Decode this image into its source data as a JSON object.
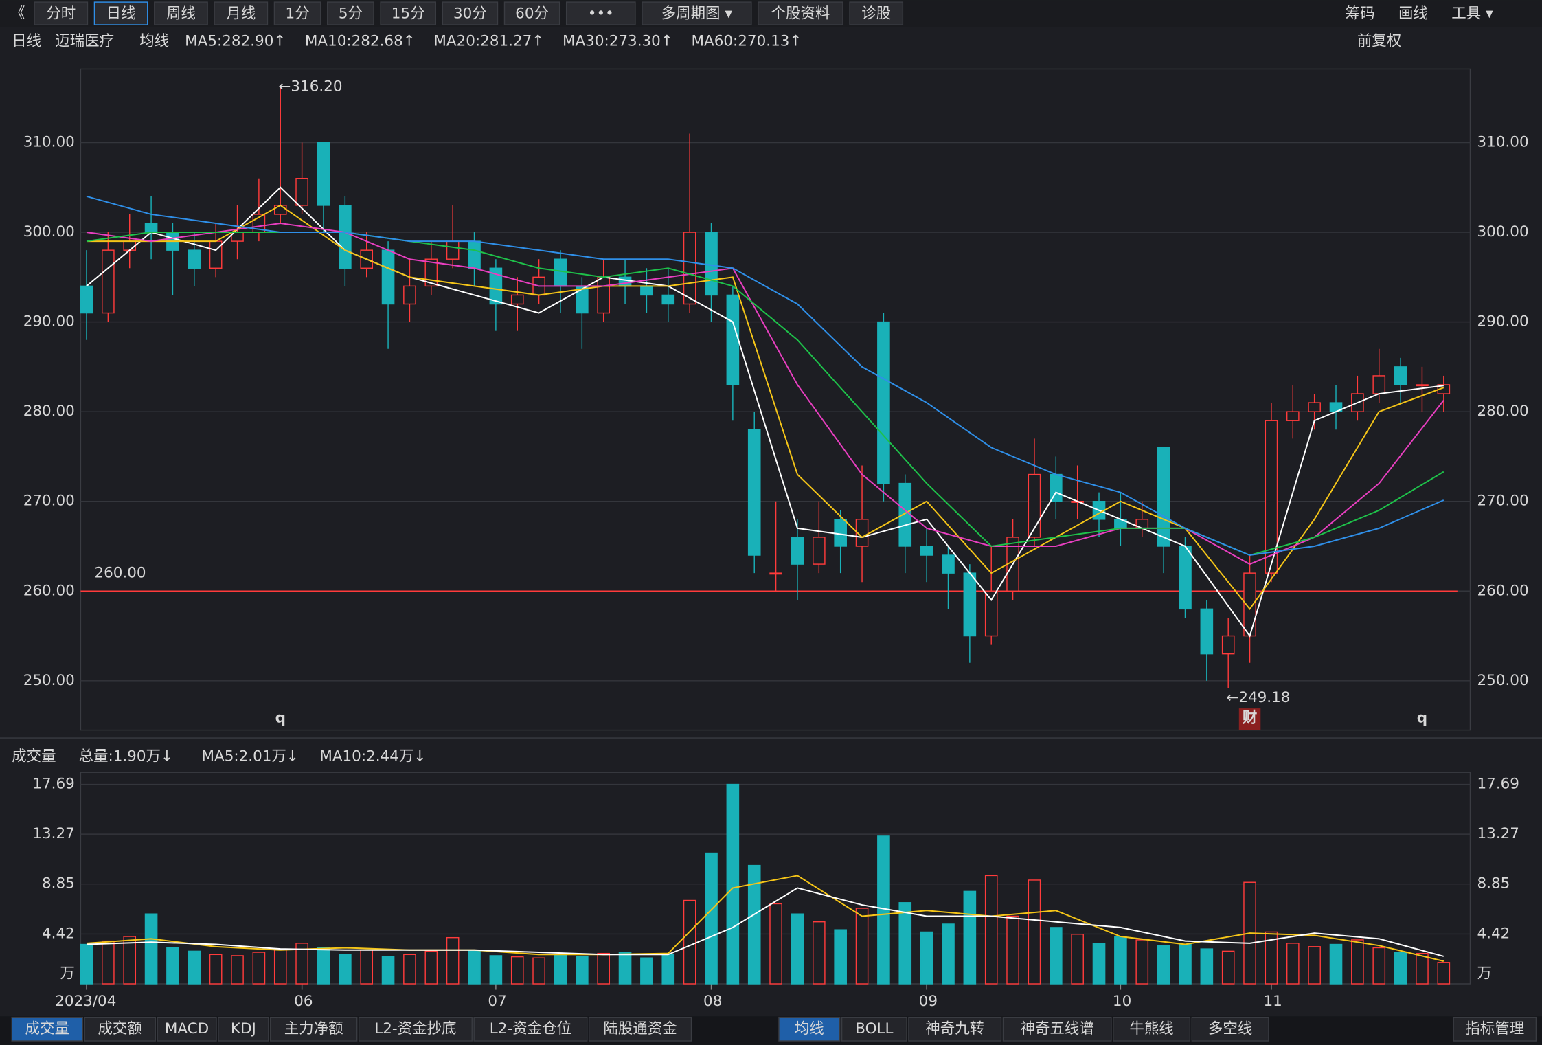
{
  "toolbar": {
    "left": [
      "《",
      "分时",
      "日线",
      "周线",
      "月线",
      "1分",
      "5分",
      "15分",
      "30分",
      "60分",
      "•••",
      "多周期图 ▾",
      "个股资料",
      "诊股"
    ],
    "active": "日线",
    "right": [
      "筹码",
      "画线",
      "工具 ▾"
    ]
  },
  "legend": {
    "period": "日线",
    "stock": "迈瑞医疗",
    "kind": "均线",
    "items": [
      "MA5:282.90↑",
      "MA10:282.68↑",
      "MA20:281.27↑",
      "MA30:273.30↑",
      "MA60:270.13↑"
    ],
    "adjust": "前复权"
  },
  "volume_legend": {
    "name": "成交量",
    "items": [
      "总量:1.90万↓",
      "MA5:2.01万↓",
      "MA10:2.44万↓"
    ]
  },
  "bottom_tabs": {
    "left": [
      "成交量",
      "成交额",
      "MACD",
      "KDJ",
      "主力净额",
      "L2-资金抄底",
      "L2-资金仓位",
      "陆股通资金"
    ],
    "right": [
      "均线",
      "BOLL",
      "神奇九转",
      "神奇五线谱",
      "牛熊线",
      "多空线"
    ],
    "manage": "指标管理"
  },
  "chart_data": {
    "type": "candlestick",
    "up_color": "#ff3b3b",
    "down_color": "#19b1b8",
    "ylim": [
      244.5,
      318.2
    ],
    "yticks": [
      {
        "value": 250,
        "label": "250.00"
      },
      {
        "value": 260,
        "label": "260.00"
      },
      {
        "value": 270,
        "label": "270.00"
      },
      {
        "value": 280,
        "label": "280.00"
      },
      {
        "value": 290,
        "label": "290.00"
      },
      {
        "value": 300,
        "label": "300.00"
      },
      {
        "value": 310,
        "label": "310.00"
      }
    ],
    "xlabels": [
      {
        "index": 0,
        "label": "2023/04"
      },
      {
        "index": 10,
        "label": "06"
      },
      {
        "index": 19,
        "label": "07"
      },
      {
        "index": 29,
        "label": "08"
      },
      {
        "index": 39,
        "label": "09"
      },
      {
        "index": 48,
        "label": "10"
      },
      {
        "index": 55,
        "label": "11"
      }
    ],
    "candles": [
      [
        294,
        298,
        288,
        291
      ],
      [
        291,
        300,
        290,
        298
      ],
      [
        298,
        302,
        296,
        299
      ],
      [
        301,
        304,
        297,
        300
      ],
      [
        300,
        301,
        293,
        298
      ],
      [
        298,
        300,
        294,
        296
      ],
      [
        296,
        301,
        295,
        299
      ],
      [
        299,
        303,
        297,
        300
      ],
      [
        300,
        306,
        299,
        302
      ],
      [
        302,
        316.2,
        301,
        303
      ],
      [
        303,
        310,
        302,
        306
      ],
      [
        310,
        310,
        300,
        303
      ],
      [
        303,
        304,
        294,
        296
      ],
      [
        296,
        300,
        295,
        298
      ],
      [
        298,
        299,
        287,
        292
      ],
      [
        292,
        297,
        290,
        294
      ],
      [
        294,
        299,
        293,
        297
      ],
      [
        297,
        303,
        296,
        299
      ],
      [
        299,
        300,
        294,
        296
      ],
      [
        296,
        297,
        289,
        292
      ],
      [
        292,
        295,
        289,
        293
      ],
      [
        293,
        297,
        292,
        295
      ],
      [
        297,
        298,
        291,
        294
      ],
      [
        294,
        295,
        287,
        291
      ],
      [
        291,
        297,
        290,
        295
      ],
      [
        295,
        297,
        292,
        294
      ],
      [
        294,
        296,
        291,
        293
      ],
      [
        293,
        296,
        290,
        292
      ],
      [
        292,
        311,
        291,
        300
      ],
      [
        300,
        301,
        290,
        293
      ],
      [
        293,
        294,
        279,
        283
      ],
      [
        278,
        280,
        262,
        264
      ],
      [
        262,
        270,
        260,
        262
      ],
      [
        266,
        268,
        259,
        263
      ],
      [
        263,
        270,
        262,
        266
      ],
      [
        268,
        269,
        262,
        265
      ],
      [
        265,
        274,
        261,
        268
      ],
      [
        290,
        291,
        270,
        272
      ],
      [
        272,
        273,
        262,
        265
      ],
      [
        265,
        267,
        261,
        264
      ],
      [
        264,
        265,
        258,
        262
      ],
      [
        262,
        263,
        252,
        255
      ],
      [
        255,
        265,
        254,
        260
      ],
      [
        260,
        268,
        259,
        266
      ],
      [
        266,
        277,
        265,
        273
      ],
      [
        273,
        275,
        268,
        270
      ],
      [
        270,
        274,
        268,
        270
      ],
      [
        270,
        271,
        266,
        268
      ],
      [
        268,
        271,
        265,
        267
      ],
      [
        267,
        270,
        266,
        268
      ],
      [
        276,
        276,
        262,
        265
      ],
      [
        265,
        266,
        257,
        258
      ],
      [
        258,
        259,
        250,
        253
      ],
      [
        253,
        257,
        249.18,
        255
      ],
      [
        255,
        264,
        252,
        262
      ],
      [
        262,
        281,
        261,
        279
      ],
      [
        279,
        283,
        277,
        280
      ],
      [
        280,
        282,
        278,
        281
      ],
      [
        281,
        283,
        278,
        280
      ],
      [
        280,
        284,
        279,
        282
      ],
      [
        282,
        287,
        281,
        284
      ],
      [
        285,
        286,
        281,
        283
      ],
      [
        283,
        285,
        280,
        283
      ],
      [
        282,
        284,
        280,
        283
      ]
    ],
    "ma_x": [
      0,
      3,
      6,
      9,
      12,
      15,
      18,
      21,
      24,
      27,
      30,
      33,
      36,
      39,
      42,
      45,
      48,
      51,
      54,
      57,
      60,
      63
    ],
    "ma": [
      {
        "name": "MA5",
        "color": "#ffffff",
        "values": [
          294,
          300,
          298,
          305,
          298,
          295,
          293,
          291,
          295,
          294,
          290,
          267,
          266,
          268,
          259,
          271,
          268,
          265,
          255,
          279,
          282,
          282.9
        ]
      },
      {
        "name": "MA10",
        "color": "#f5c518",
        "values": [
          299,
          299,
          299,
          303,
          298,
          295,
          294,
          293,
          294,
          294,
          295,
          273,
          266,
          270,
          262,
          266,
          270,
          267,
          258,
          268,
          280,
          282.68
        ]
      },
      {
        "name": "MA20",
        "color": "#e83fc0",
        "values": [
          300,
          299,
          300,
          301,
          300,
          297,
          296,
          294,
          294,
          295,
          296,
          283,
          273,
          267,
          265,
          265,
          267,
          267,
          263,
          266,
          272,
          281.27
        ]
      },
      {
        "name": "MA30",
        "color": "#1ec14a",
        "values": [
          299,
          300,
          300,
          300,
          300,
          299,
          298,
          296,
          295,
          296,
          294,
          288,
          280,
          272,
          265,
          266,
          267,
          267,
          264,
          266,
          269,
          273.3
        ]
      },
      {
        "name": "MA60",
        "color": "#2f8fe8",
        "values": [
          304,
          302,
          301,
          300,
          300,
          299,
          299,
          298,
          297,
          297,
          296,
          292,
          285,
          281,
          276,
          273,
          271,
          267,
          264,
          265,
          267,
          270.13
        ]
      }
    ],
    "hline": {
      "value": 260,
      "label": "260.00",
      "color": "#ff3b3b"
    },
    "annotations": [
      {
        "index": 9,
        "value": 316.2,
        "label": "←316.20"
      },
      {
        "index": 53,
        "value": 249.18,
        "label": "←249.18"
      }
    ],
    "markers": [
      {
        "index": 9,
        "label": "q"
      },
      {
        "index": 54,
        "label": "财"
      },
      {
        "index": 62,
        "label": "q"
      }
    ],
    "volume": {
      "unit": "万",
      "ylim": [
        0,
        18.75
      ],
      "yticks": [
        4.42,
        8.85,
        13.27,
        17.69
      ],
      "values": [
        3.5,
        3.8,
        4.2,
        6.2,
        3.2,
        2.9,
        2.6,
        2.5,
        2.8,
        3.0,
        3.6,
        3.2,
        2.6,
        3.0,
        2.4,
        2.6,
        2.9,
        4.1,
        3.0,
        2.5,
        2.4,
        2.3,
        2.6,
        2.4,
        2.7,
        2.8,
        2.3,
        2.6,
        7.4,
        11.6,
        17.69,
        10.5,
        7.1,
        6.2,
        5.5,
        4.8,
        6.7,
        13.1,
        7.2,
        4.6,
        5.3,
        8.2,
        9.6,
        6.0,
        9.2,
        5.0,
        4.4,
        3.6,
        4.2,
        3.9,
        3.4,
        3.5,
        3.1,
        2.9,
        9.0,
        4.6,
        3.6,
        3.3,
        3.5,
        3.9,
        3.2,
        2.8,
        2.7,
        1.9
      ],
      "ma": [
        {
          "name": "MA5",
          "color": "#f5c518",
          "values": [
            3.6,
            4.0,
            3.3,
            3.0,
            3.2,
            3.0,
            3.0,
            2.6,
            2.6,
            2.7,
            8.5,
            9.6,
            6.0,
            6.5,
            6.0,
            6.5,
            4.2,
            3.5,
            4.5,
            4.3,
            3.4,
            2.01
          ]
        },
        {
          "name": "MA10",
          "color": "#ffffff",
          "values": [
            3.5,
            3.7,
            3.5,
            3.1,
            3.0,
            3.0,
            3.0,
            2.8,
            2.6,
            2.6,
            5.0,
            8.5,
            7.0,
            6.0,
            6.0,
            5.5,
            5.0,
            3.8,
            3.6,
            4.5,
            4.0,
            2.44
          ]
        }
      ]
    }
  }
}
